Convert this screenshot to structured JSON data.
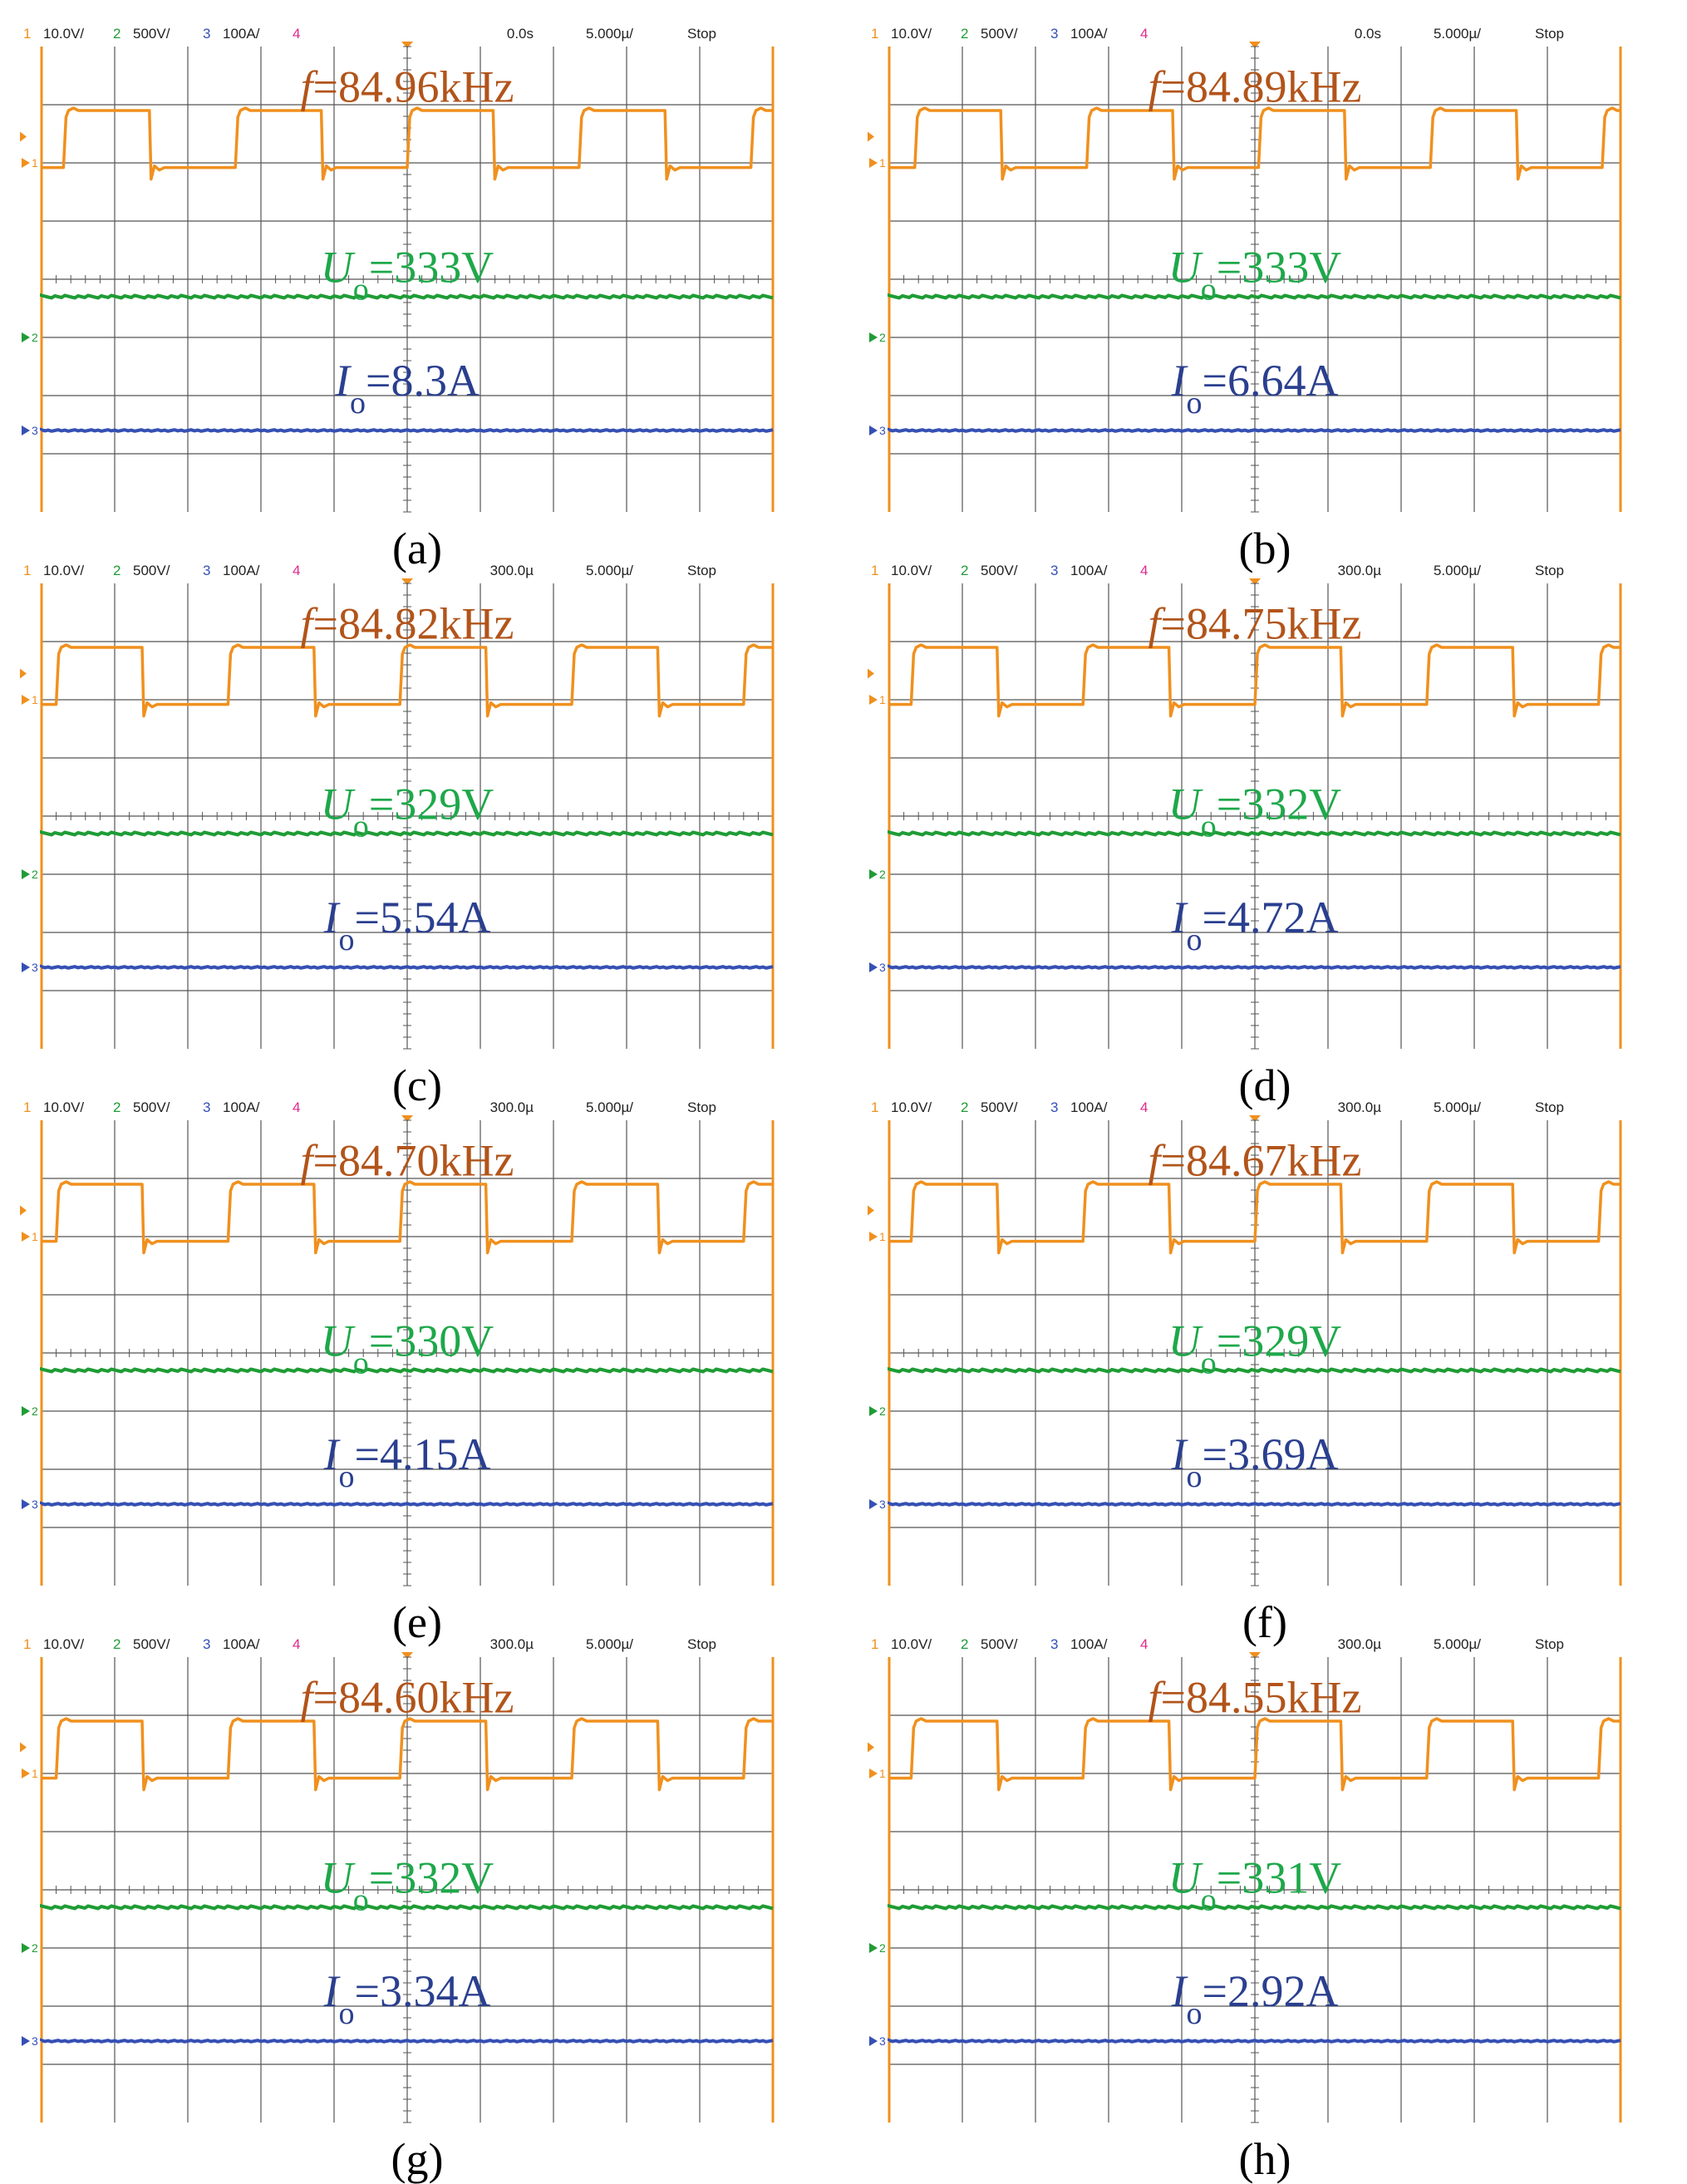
{
  "colors": {
    "ch1": "#f0901e",
    "ch2": "#1f9c35",
    "ch3": "#3550b4",
    "ch4": "#e0288c",
    "freq_text": "#b2541a",
    "uo_text": "#1ea84a",
    "io_text": "#2a3f8f",
    "grid": "#555555",
    "frame": "#f0901e"
  },
  "chart_data": [
    {
      "type": "line",
      "caption": "(a)",
      "header": {
        "ch1": "1",
        "ch1_scale": "10.0V/",
        "ch2": "2",
        "ch2_scale": "500V/",
        "ch3": "3",
        "ch3_scale": "100A/",
        "ch4": "4",
        "delay": "0.0s",
        "timebase": "5.000µ/",
        "status": "Stop"
      },
      "frequency": {
        "label": "f",
        "eq": "=84.96kHz"
      },
      "uo": {
        "label": "U",
        "sub": "o",
        "eq": "=333V"
      },
      "io": {
        "label": "I",
        "sub": "o",
        "eq": "=8.3A"
      },
      "period_divisions": 2.35,
      "phase_divisions": 0.3
    },
    {
      "type": "line",
      "caption": "(b)",
      "header": {
        "ch1": "1",
        "ch1_scale": "10.0V/",
        "ch2": "2",
        "ch2_scale": "500V/",
        "ch3": "3",
        "ch3_scale": "100A/",
        "ch4": "4",
        "delay": "0.0s",
        "timebase": "5.000µ/",
        "status": "Stop"
      },
      "frequency": {
        "label": "f",
        "eq": "=84.89kHz"
      },
      "uo": {
        "label": "U",
        "sub": "o",
        "eq": "=333V"
      },
      "io": {
        "label": "I",
        "sub": "o",
        "eq": "=6.64A"
      },
      "period_divisions": 2.35,
      "phase_divisions": 0.35
    },
    {
      "type": "line",
      "caption": "(c)",
      "header": {
        "ch1": "1",
        "ch1_scale": "10.0V/",
        "ch2": "2",
        "ch2_scale": "500V/",
        "ch3": "3",
        "ch3_scale": "100A/",
        "ch4": "4",
        "delay": "300.0µ",
        "timebase": "5.000µ/",
        "status": "Stop"
      },
      "frequency": {
        "label": "f",
        "eq": "=84.82kHz"
      },
      "uo": {
        "label": "U",
        "sub": "o",
        "eq": "=329V"
      },
      "io": {
        "label": "I",
        "sub": "o",
        "eq": "=5.54A"
      },
      "period_divisions": 2.35,
      "phase_divisions": 0.2
    },
    {
      "type": "line",
      "caption": "(d)",
      "header": {
        "ch1": "1",
        "ch1_scale": "10.0V/",
        "ch2": "2",
        "ch2_scale": "500V/",
        "ch3": "3",
        "ch3_scale": "100A/",
        "ch4": "4",
        "delay": "300.0µ",
        "timebase": "5.000µ/",
        "status": "Stop"
      },
      "frequency": {
        "label": "f",
        "eq": "=84.75kHz"
      },
      "uo": {
        "label": "U",
        "sub": "o",
        "eq": "=332V"
      },
      "io": {
        "label": "I",
        "sub": "o",
        "eq": "=4.72A"
      },
      "period_divisions": 2.35,
      "phase_divisions": 0.3
    },
    {
      "type": "line",
      "caption": "(e)",
      "header": {
        "ch1": "1",
        "ch1_scale": "10.0V/",
        "ch2": "2",
        "ch2_scale": "500V/",
        "ch3": "3",
        "ch3_scale": "100A/",
        "ch4": "4",
        "delay": "300.0µ",
        "timebase": "5.000µ/",
        "status": "Stop"
      },
      "frequency": {
        "label": "f",
        "eq": "=84.70kHz"
      },
      "uo": {
        "label": "U",
        "sub": "o",
        "eq": "=330V"
      },
      "io": {
        "label": "I",
        "sub": "o",
        "eq": "=4.15A"
      },
      "period_divisions": 2.35,
      "phase_divisions": 0.2
    },
    {
      "type": "line",
      "caption": "(f)",
      "header": {
        "ch1": "1",
        "ch1_scale": "10.0V/",
        "ch2": "2",
        "ch2_scale": "500V/",
        "ch3": "3",
        "ch3_scale": "100A/",
        "ch4": "4",
        "delay": "300.0µ",
        "timebase": "5.000µ/",
        "status": "Stop"
      },
      "frequency": {
        "label": "f",
        "eq": "=84.67kHz"
      },
      "uo": {
        "label": "U",
        "sub": "o",
        "eq": "=329V"
      },
      "io": {
        "label": "I",
        "sub": "o",
        "eq": "=3.69A"
      },
      "period_divisions": 2.35,
      "phase_divisions": 0.3
    },
    {
      "type": "line",
      "caption": "(g)",
      "header": {
        "ch1": "1",
        "ch1_scale": "10.0V/",
        "ch2": "2",
        "ch2_scale": "500V/",
        "ch3": "3",
        "ch3_scale": "100A/",
        "ch4": "4",
        "delay": "300.0µ",
        "timebase": "5.000µ/",
        "status": "Stop"
      },
      "frequency": {
        "label": "f",
        "eq": "=84.60kHz"
      },
      "uo": {
        "label": "U",
        "sub": "o",
        "eq": "=332V"
      },
      "io": {
        "label": "I",
        "sub": "o",
        "eq": "=3.34A"
      },
      "period_divisions": 2.35,
      "phase_divisions": 0.2
    },
    {
      "type": "line",
      "caption": "(h)",
      "header": {
        "ch1": "1",
        "ch1_scale": "10.0V/",
        "ch2": "2",
        "ch2_scale": "500V/",
        "ch3": "3",
        "ch3_scale": "100A/",
        "ch4": "4",
        "delay": "300.0µ",
        "timebase": "5.000µ/",
        "status": "Stop"
      },
      "frequency": {
        "label": "f",
        "eq": "=84.55kHz"
      },
      "uo": {
        "label": "U",
        "sub": "o",
        "eq": "=331V"
      },
      "io": {
        "label": "I",
        "sub": "o",
        "eq": "=2.92A"
      },
      "period_divisions": 2.35,
      "phase_divisions": 0.3
    }
  ]
}
